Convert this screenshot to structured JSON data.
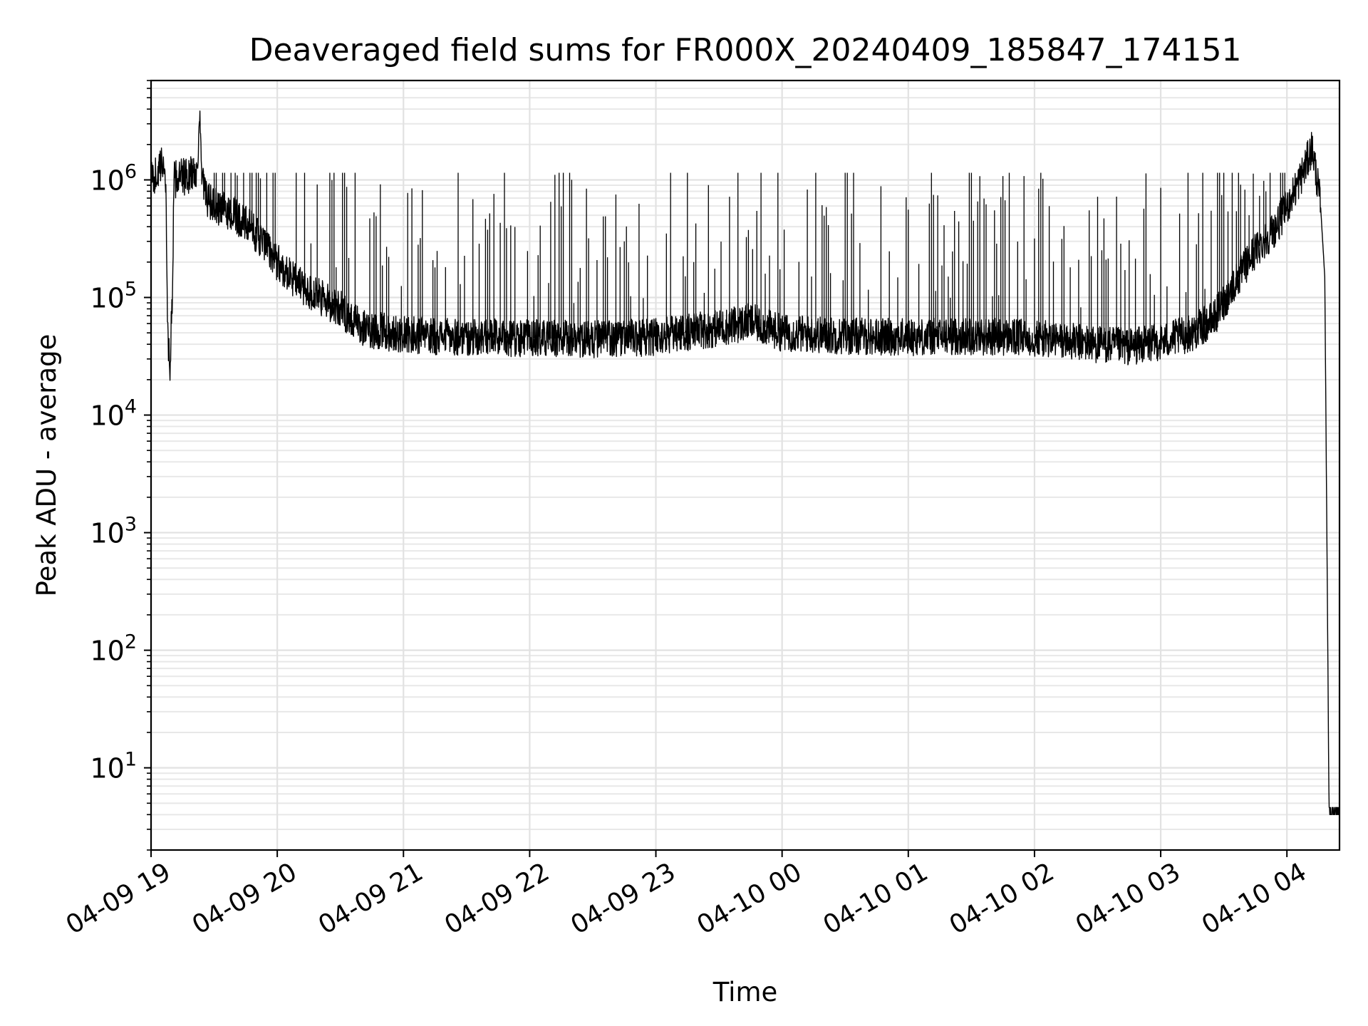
{
  "chart_data": {
    "type": "line",
    "title": "Deaveraged field sums for FR000X_20240409_185847_174151",
    "xlabel": "Time",
    "ylabel": "Peak ADU - average",
    "yscale": "log",
    "grid": "on",
    "xlim": [
      "2024-04-09 19:00",
      "2024-04-10 04:25"
    ],
    "ylim": [
      2,
      7000000
    ],
    "x_ticks": [
      {
        "value": "2024-04-09 19:00",
        "label": "04-09 19"
      },
      {
        "value": "2024-04-09 20:00",
        "label": "04-09 20"
      },
      {
        "value": "2024-04-09 21:00",
        "label": "04-09 21"
      },
      {
        "value": "2024-04-09 22:00",
        "label": "04-09 22"
      },
      {
        "value": "2024-04-09 23:00",
        "label": "04-09 23"
      },
      {
        "value": "2024-04-10 00:00",
        "label": "04-10 00"
      },
      {
        "value": "2024-04-10 01:00",
        "label": "04-10 01"
      },
      {
        "value": "2024-04-10 02:00",
        "label": "04-10 02"
      },
      {
        "value": "2024-04-10 03:00",
        "label": "04-10 03"
      },
      {
        "value": "2024-04-10 04:00",
        "label": "04-10 04"
      }
    ],
    "y_ticks": [
      {
        "value": 10,
        "base": "10",
        "exp": "1"
      },
      {
        "value": 100,
        "base": "10",
        "exp": "2"
      },
      {
        "value": 1000,
        "base": "10",
        "exp": "3"
      },
      {
        "value": 10000,
        "base": "10",
        "exp": "4"
      },
      {
        "value": 100000,
        "base": "10",
        "exp": "5"
      },
      {
        "value": 1000000,
        "base": "10",
        "exp": "6"
      }
    ],
    "series": [
      {
        "color": "#000000",
        "points": [
          [
            "2024-04-09 19:00",
            1000000
          ],
          [
            "2024-04-09 19:04",
            1200000
          ],
          [
            "2024-04-09 19:06",
            1500000
          ],
          [
            "2024-04-09 19:07",
            900000
          ],
          [
            "2024-04-09 19:08",
            45000
          ],
          [
            "2024-04-09 19:09",
            25000
          ],
          [
            "2024-04-09 19:10",
            90000
          ],
          [
            "2024-04-09 19:11",
            1000000
          ],
          [
            "2024-04-09 19:18",
            1100000
          ],
          [
            "2024-04-09 19:22",
            1200000
          ],
          [
            "2024-04-09 19:23",
            4000000
          ],
          [
            "2024-04-09 19:24",
            1100000
          ],
          [
            "2024-04-09 19:26",
            700000
          ],
          [
            "2024-04-09 19:30",
            600000
          ],
          [
            "2024-04-09 19:40",
            500000
          ],
          [
            "2024-04-09 19:50",
            350000
          ],
          [
            "2024-04-09 20:00",
            200000
          ],
          [
            "2024-04-09 20:10",
            130000
          ],
          [
            "2024-04-09 20:20",
            100000
          ],
          [
            "2024-04-09 20:30",
            80000
          ],
          [
            "2024-04-09 20:40",
            55000
          ],
          [
            "2024-04-09 21:00",
            48000
          ],
          [
            "2024-04-09 21:30",
            46000
          ],
          [
            "2024-04-09 22:00",
            45000
          ],
          [
            "2024-04-09 22:30",
            44000
          ],
          [
            "2024-04-09 23:00",
            46000
          ],
          [
            "2024-04-09 23:30",
            55000
          ],
          [
            "2024-04-09 23:45",
            62000
          ],
          [
            "2024-04-10 00:00",
            50000
          ],
          [
            "2024-04-10 00:30",
            47000
          ],
          [
            "2024-04-10 01:00",
            46000
          ],
          [
            "2024-04-10 01:30",
            47000
          ],
          [
            "2024-04-10 02:00",
            45000
          ],
          [
            "2024-04-10 02:30",
            40000
          ],
          [
            "2024-04-10 02:45",
            38000
          ],
          [
            "2024-04-10 03:00",
            42000
          ],
          [
            "2024-04-10 03:15",
            50000
          ],
          [
            "2024-04-10 03:25",
            65000
          ],
          [
            "2024-04-10 03:35",
            130000
          ],
          [
            "2024-04-10 03:45",
            250000
          ],
          [
            "2024-04-10 03:55",
            400000
          ],
          [
            "2024-04-10 04:02",
            700000
          ],
          [
            "2024-04-10 04:08",
            1200000
          ],
          [
            "2024-04-10 04:12",
            1900000
          ],
          [
            "2024-04-10 04:14",
            1100000
          ],
          [
            "2024-04-10 04:16",
            600000
          ],
          [
            "2024-04-10 04:18",
            150000
          ],
          [
            "2024-04-10 04:19",
            1000
          ],
          [
            "2024-04-10 04:20",
            5
          ],
          [
            "2024-04-10 04:21",
            4
          ],
          [
            "2024-04-10 04:25",
            4
          ]
        ]
      }
    ]
  }
}
